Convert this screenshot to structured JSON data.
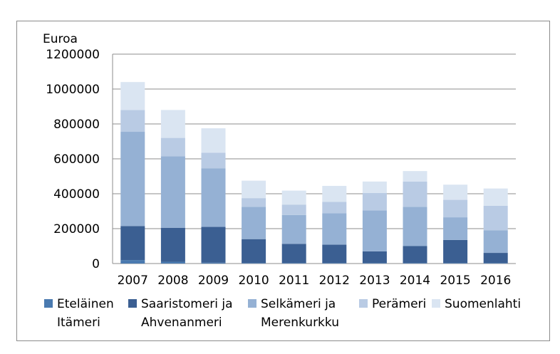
{
  "chart_data": {
    "type": "bar",
    "stacked": true,
    "unit_label": "Euroa",
    "categories": [
      "2007",
      "2008",
      "2009",
      "2010",
      "2011",
      "2012",
      "2013",
      "2014",
      "2015",
      "2016"
    ],
    "ylim": [
      0,
      1200000
    ],
    "yticks": [
      "0",
      "200000",
      "400000",
      "600000",
      "800000",
      "1000000",
      "1200000"
    ],
    "grid": true,
    "legend_position": "bottom",
    "series": [
      {
        "name": "Eteläinen Itämeri",
        "legend_lines": [
          "Eteläinen",
          "Itämeri"
        ],
        "color": "#4a7ab0",
        "values": [
          20000,
          10000,
          5000,
          3000,
          3000,
          3000,
          3000,
          3000,
          3000,
          3000
        ]
      },
      {
        "name": "Saaristomeri ja Ahvenanmeri",
        "legend_lines": [
          "Saaristomeri ja",
          "Ahvenanmeri"
        ],
        "color": "#3b5f92",
        "values": [
          195000,
          195000,
          205000,
          137000,
          110000,
          105000,
          67000,
          97000,
          132000,
          58000
        ]
      },
      {
        "name": "Selkämeri ja Merenkurkku",
        "legend_lines": [
          "Selkämeri ja",
          "Merenkurkku"
        ],
        "color": "#95b1d4",
        "values": [
          540000,
          410000,
          335000,
          185000,
          165000,
          180000,
          235000,
          225000,
          130000,
          130000
        ]
      },
      {
        "name": "Perämeri",
        "legend_lines": [
          "Perämeri"
        ],
        "color": "#b9cbe4",
        "values": [
          125000,
          105000,
          90000,
          50000,
          60000,
          65000,
          100000,
          145000,
          100000,
          140000
        ]
      },
      {
        "name": "Suomenlahti",
        "legend_lines": [
          "Suomenlahti"
        ],
        "color": "#dae5f2",
        "values": [
          160000,
          160000,
          140000,
          100000,
          80000,
          92000,
          65000,
          60000,
          87000,
          99000
        ]
      }
    ]
  }
}
